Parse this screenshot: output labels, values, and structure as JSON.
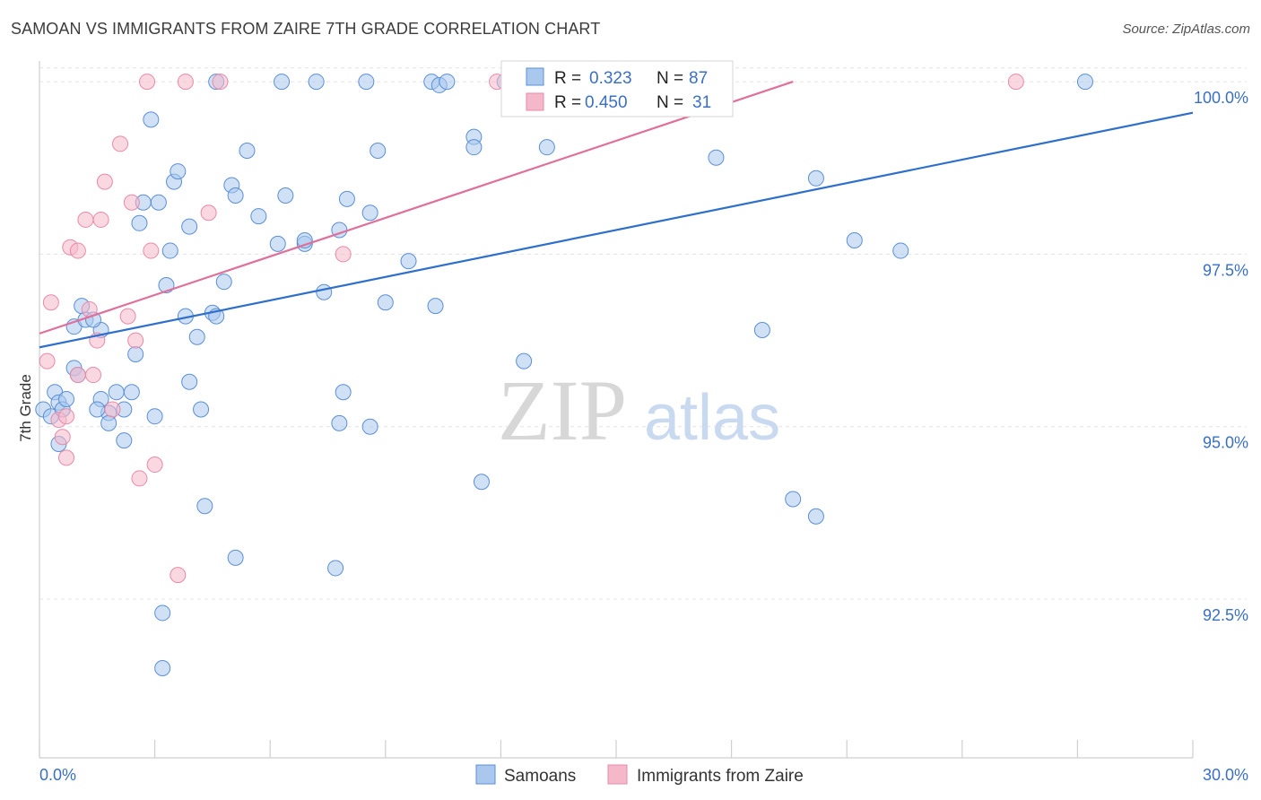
{
  "title": "SAMOAN VS IMMIGRANTS FROM ZAIRE 7TH GRADE CORRELATION CHART",
  "source": "Source: ZipAtlas.com",
  "watermark": {
    "zip": "ZIP",
    "atlas": "atlas"
  },
  "colors": {
    "blue_fill": "#aac8ee",
    "blue_stroke": "#5b8fd6",
    "blue_line": "#2f6fcc",
    "pink_fill": "#f5b8cb",
    "pink_stroke": "#e88aa8",
    "pink_line": "#e0709a",
    "axis_text": "#3a6fc4",
    "grid": "#e3e3e3"
  },
  "legend": {
    "rows": [
      {
        "r_label": "R =",
        "r_value": "0.323",
        "n_label": "N =",
        "n_value": "87"
      },
      {
        "r_label": "R =",
        "r_value": "0.450",
        "n_label": "N =",
        "n_value": "31"
      }
    ]
  },
  "bottom_legend": [
    "Samoans",
    "Immigrants from Zaire"
  ],
  "chart_data": {
    "type": "scatter",
    "title": "SAMOAN VS IMMIGRANTS FROM ZAIRE 7TH GRADE CORRELATION CHART",
    "xlabel": "",
    "ylabel": "7th Grade",
    "xlim": [
      0,
      30
    ],
    "ylim": [
      90.2,
      100.3
    ],
    "x_tick_labels": [
      "0.0%",
      "30.0%"
    ],
    "y_ticks": [
      92.5,
      95.0,
      97.5,
      100.0
    ],
    "y_tick_labels": [
      "92.5%",
      "95.0%",
      "97.5%",
      "100.0%"
    ],
    "series": [
      {
        "name": "Samoans",
        "r": 0.323,
        "n": 87,
        "trend": {
          "x": [
            0,
            30
          ],
          "y": [
            96.15,
            99.55
          ]
        },
        "points": [
          [
            0.1,
            95.25
          ],
          [
            0.3,
            95.15
          ],
          [
            0.4,
            95.5
          ],
          [
            0.5,
            95.35
          ],
          [
            0.6,
            95.25
          ],
          [
            0.7,
            95.4
          ],
          [
            0.5,
            94.75
          ],
          [
            0.9,
            95.85
          ],
          [
            1.0,
            95.75
          ],
          [
            1.1,
            96.75
          ],
          [
            0.9,
            96.45
          ],
          [
            1.2,
            96.55
          ],
          [
            1.6,
            96.4
          ],
          [
            1.6,
            95.4
          ],
          [
            1.8,
            95.2
          ],
          [
            2.0,
            95.5
          ],
          [
            2.2,
            95.25
          ],
          [
            2.2,
            94.8
          ],
          [
            2.5,
            96.05
          ],
          [
            2.6,
            97.95
          ],
          [
            2.7,
            98.25
          ],
          [
            2.9,
            99.45
          ],
          [
            3.0,
            95.15
          ],
          [
            3.1,
            98.25
          ],
          [
            3.3,
            97.05
          ],
          [
            3.4,
            97.55
          ],
          [
            3.5,
            98.55
          ],
          [
            3.6,
            98.7
          ],
          [
            3.8,
            96.6
          ],
          [
            3.9,
            95.65
          ],
          [
            3.9,
            97.9
          ],
          [
            4.1,
            96.3
          ],
          [
            4.2,
            95.25
          ],
          [
            4.3,
            93.85
          ],
          [
            4.5,
            96.65
          ],
          [
            4.6,
            100.0
          ],
          [
            4.6,
            96.6
          ],
          [
            4.8,
            97.1
          ],
          [
            5.0,
            98.5
          ],
          [
            5.1,
            98.35
          ],
          [
            5.1,
            93.1
          ],
          [
            5.4,
            99.0
          ],
          [
            5.7,
            98.05
          ],
          [
            6.2,
            97.65
          ],
          [
            6.3,
            100.0
          ],
          [
            6.4,
            98.35
          ],
          [
            6.9,
            97.65
          ],
          [
            6.9,
            97.7
          ],
          [
            7.2,
            100.0
          ],
          [
            7.4,
            96.95
          ],
          [
            7.8,
            97.85
          ],
          [
            7.7,
            92.95
          ],
          [
            7.8,
            95.05
          ],
          [
            7.9,
            95.5
          ],
          [
            8.0,
            98.3
          ],
          [
            8.5,
            100.0
          ],
          [
            8.6,
            98.1
          ],
          [
            8.6,
            95.0
          ],
          [
            8.8,
            99.0
          ],
          [
            9.0,
            96.8
          ],
          [
            9.6,
            97.4
          ],
          [
            10.2,
            100.0
          ],
          [
            10.4,
            99.95
          ],
          [
            10.6,
            100.0
          ],
          [
            10.3,
            96.75
          ],
          [
            11.3,
            99.2
          ],
          [
            11.3,
            99.05
          ],
          [
            11.5,
            94.2
          ],
          [
            12.1,
            100.0
          ],
          [
            12.6,
            95.95
          ],
          [
            13.2,
            99.05
          ],
          [
            13.3,
            100.0
          ],
          [
            14.4,
            100.0
          ],
          [
            17.6,
            98.9
          ],
          [
            18.8,
            96.4
          ],
          [
            19.6,
            93.95
          ],
          [
            20.2,
            93.7
          ],
          [
            20.2,
            98.6
          ],
          [
            21.2,
            97.7
          ],
          [
            22.4,
            97.55
          ],
          [
            27.2,
            100.0
          ],
          [
            1.4,
            96.55
          ],
          [
            2.4,
            95.5
          ],
          [
            1.8,
            95.05
          ],
          [
            3.2,
            92.3
          ],
          [
            3.2,
            91.5
          ],
          [
            1.5,
            95.25
          ]
        ]
      },
      {
        "name": "Immigrants from Zaire",
        "r": 0.45,
        "n": 31,
        "trend": {
          "x": [
            0,
            19.6
          ],
          "y": [
            96.35,
            100.0
          ]
        },
        "points": [
          [
            0.2,
            95.95
          ],
          [
            0.3,
            96.8
          ],
          [
            0.5,
            95.1
          ],
          [
            0.6,
            94.85
          ],
          [
            0.7,
            94.55
          ],
          [
            0.7,
            95.15
          ],
          [
            0.8,
            97.6
          ],
          [
            1.0,
            97.55
          ],
          [
            1.0,
            95.75
          ],
          [
            1.2,
            98.0
          ],
          [
            1.3,
            96.7
          ],
          [
            1.4,
            95.75
          ],
          [
            1.5,
            96.25
          ],
          [
            1.6,
            98.0
          ],
          [
            1.7,
            98.55
          ],
          [
            1.9,
            95.25
          ],
          [
            2.1,
            99.1
          ],
          [
            2.3,
            96.6
          ],
          [
            2.4,
            98.25
          ],
          [
            2.5,
            96.25
          ],
          [
            2.6,
            94.25
          ],
          [
            2.8,
            100.0
          ],
          [
            2.9,
            97.55
          ],
          [
            3.0,
            94.45
          ],
          [
            3.6,
            92.85
          ],
          [
            3.8,
            100.0
          ],
          [
            4.4,
            98.1
          ],
          [
            4.7,
            100.0
          ],
          [
            7.9,
            97.5
          ],
          [
            11.9,
            100.0
          ],
          [
            25.4,
            100.0
          ]
        ]
      }
    ]
  }
}
